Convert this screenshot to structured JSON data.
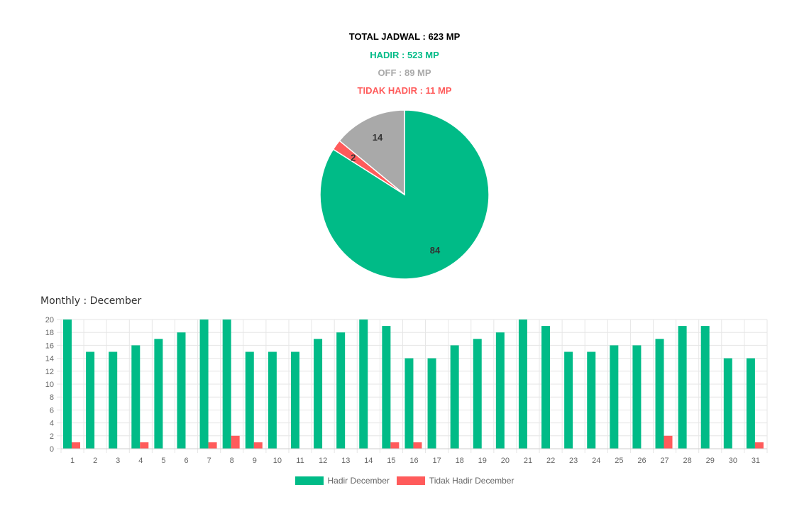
{
  "summary": {
    "total": "TOTAL JADWAL : 623 MP",
    "hadir": "HADIR : 523 MP",
    "off": "OFF : 89 MP",
    "tidak_hadir": "TIDAK HADIR : 11 MP"
  },
  "colors": {
    "hadir": "#00bb87",
    "tidak_hadir": "#ff5b5b",
    "off": "#a9a9a9",
    "grid": "#e6e6e6",
    "axis_text": "#666666"
  },
  "chart_data": [
    {
      "type": "pie",
      "slices": [
        {
          "label": "84",
          "value": 84,
          "color": "#00bb87"
        },
        {
          "label": "2",
          "value": 2,
          "color": "#ff5b5b"
        },
        {
          "label": "14",
          "value": 14,
          "color": "#a9a9a9"
        }
      ]
    },
    {
      "type": "bar",
      "title": "Monthly : December",
      "categories": [
        "1",
        "2",
        "3",
        "4",
        "5",
        "6",
        "7",
        "8",
        "9",
        "10",
        "11",
        "12",
        "13",
        "14",
        "15",
        "16",
        "17",
        "18",
        "19",
        "20",
        "21",
        "22",
        "23",
        "24",
        "25",
        "26",
        "27",
        "28",
        "29",
        "30",
        "31"
      ],
      "series": [
        {
          "name": "Hadir December",
          "color": "#00bb87",
          "values": [
            20,
            15,
            15,
            16,
            17,
            18,
            20,
            20,
            15,
            15,
            15,
            17,
            18,
            20,
            19,
            14,
            14,
            16,
            17,
            18,
            20,
            19,
            15,
            15,
            16,
            16,
            17,
            19,
            19,
            14,
            14
          ]
        },
        {
          "name": "Tidak Hadir December",
          "color": "#ff5b5b",
          "values": [
            1,
            0,
            0,
            1,
            0,
            0,
            1,
            2,
            1,
            0,
            0,
            0,
            0,
            0,
            1,
            1,
            0,
            0,
            0,
            0,
            0,
            0,
            0,
            0,
            0,
            0,
            2,
            0,
            0,
            0,
            1
          ]
        }
      ],
      "ylim": [
        0,
        20
      ],
      "yticks": [
        "0",
        "2",
        "4",
        "6",
        "8",
        "10",
        "12",
        "14",
        "16",
        "18",
        "20"
      ],
      "grid": true,
      "legend": "bottom"
    }
  ]
}
